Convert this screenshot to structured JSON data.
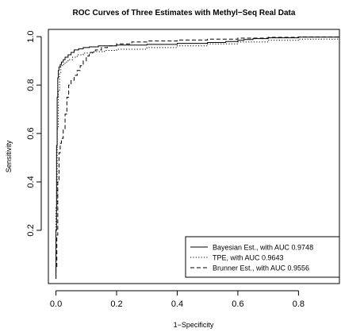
{
  "chart_data": {
    "type": "line",
    "title": "ROC Curves of Three Estimates with Methyl−Seq Real Data",
    "xlabel": "1−Specificity",
    "ylabel": "Sensitivity",
    "xlim": [
      -0.025,
      0.935
    ],
    "ylim": [
      -0.02,
      1.03
    ],
    "x_ticks": [
      0.0,
      0.2,
      0.4,
      0.6,
      0.8
    ],
    "x_tick_labels": [
      "0.0",
      "0.2",
      "0.4",
      "0.6",
      "0.8"
    ],
    "y_ticks": [
      0.2,
      0.4,
      0.6,
      0.8,
      1.0
    ],
    "y_tick_labels": [
      "0.2",
      "0.4",
      "0.6",
      "0.8",
      "1.0"
    ],
    "grid": false,
    "legend_position": "bottom-right",
    "series": [
      {
        "name": "Bayesian Est.,  with AUC 0.9748",
        "line_style": "solid",
        "color": "#000000",
        "x": [
          0.0,
          0.0,
          0.002,
          0.004,
          0.006,
          0.008,
          0.01,
          0.014,
          0.018,
          0.024,
          0.03,
          0.04,
          0.05,
          0.06,
          0.075,
          0.09,
          0.11,
          0.14,
          0.2,
          0.3,
          0.4,
          0.5,
          0.56,
          0.6,
          0.62,
          0.65,
          0.7,
          0.8,
          0.935
        ],
        "y": [
          0.0,
          0.2,
          0.55,
          0.75,
          0.83,
          0.86,
          0.875,
          0.885,
          0.895,
          0.905,
          0.915,
          0.925,
          0.935,
          0.945,
          0.95,
          0.955,
          0.958,
          0.962,
          0.965,
          0.968,
          0.972,
          0.976,
          0.98,
          0.985,
          0.988,
          0.992,
          0.995,
          0.998,
          1.0
        ]
      },
      {
        "name": "TPE,  with AUC 0.9643",
        "line_style": "dotted",
        "color": "#000000",
        "x": [
          0.0,
          0.0,
          0.004,
          0.008,
          0.012,
          0.016,
          0.02,
          0.03,
          0.04,
          0.055,
          0.07,
          0.09,
          0.12,
          0.16,
          0.2,
          0.3,
          0.4,
          0.5,
          0.6,
          0.7,
          0.8,
          0.935
        ],
        "y": [
          0.0,
          0.3,
          0.62,
          0.78,
          0.85,
          0.875,
          0.885,
          0.895,
          0.905,
          0.915,
          0.925,
          0.932,
          0.938,
          0.943,
          0.948,
          0.955,
          0.962,
          0.97,
          0.978,
          0.985,
          0.99,
          0.995
        ]
      },
      {
        "name": "Brunner Est.,  with AUC 0.9556",
        "line_style": "dashed",
        "color": "#000000",
        "x": [
          0.0,
          0.0,
          0.003,
          0.006,
          0.01,
          0.014,
          0.018,
          0.024,
          0.03,
          0.036,
          0.042,
          0.05,
          0.06,
          0.07,
          0.08,
          0.09,
          0.1,
          0.11,
          0.13,
          0.15,
          0.17,
          0.2,
          0.25,
          0.3,
          0.4,
          0.5,
          0.6,
          0.7,
          0.8,
          0.935
        ],
        "y": [
          0.0,
          0.05,
          0.18,
          0.4,
          0.52,
          0.56,
          0.58,
          0.62,
          0.68,
          0.75,
          0.8,
          0.82,
          0.84,
          0.86,
          0.88,
          0.9,
          0.92,
          0.935,
          0.945,
          0.955,
          0.962,
          0.97,
          0.978,
          0.982,
          0.986,
          0.99,
          0.994,
          0.997,
          0.999,
          1.0
        ]
      }
    ]
  }
}
